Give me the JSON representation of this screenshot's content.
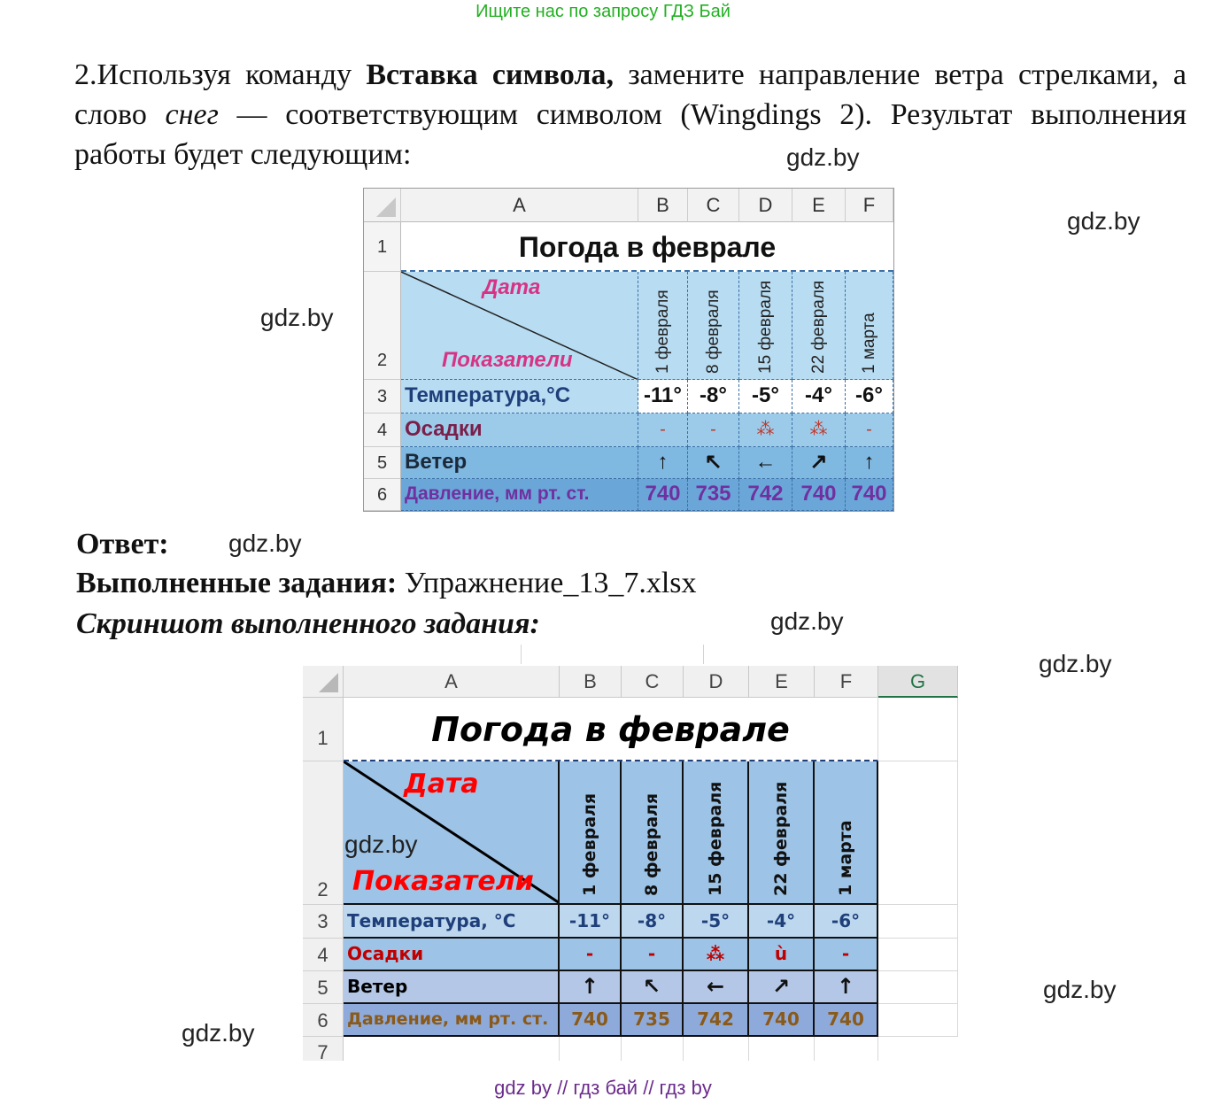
{
  "banner": "Ищите нас по запросу ГДЗ Бай",
  "task": {
    "number": "2.",
    "part1": "Используя команду ",
    "bold_cmd": "Вставка символа,",
    "part2": " замените направление ветра стрелками, а слово ",
    "italic_word": "снег",
    "part3": " — соответствующим символом (Wingdings 2). Результат выполнения работы будет следующим:"
  },
  "watermarks": [
    "gdz.by",
    "gdz.by",
    "gdz.by",
    "gdz.by",
    "gdz.by",
    "gdz.by",
    "gdz.by",
    "gdz.by",
    "gdz.by"
  ],
  "answer": {
    "answer_label": "Ответ:",
    "done_label": "Выполненные задания:",
    "done_file": " Упражнение_13_7.xlsx",
    "screenshot_label": "Скриншот выполненного задания:"
  },
  "sheet_book": {
    "columns": [
      "A",
      "B",
      "C",
      "D",
      "E",
      "F"
    ],
    "rows": [
      "1",
      "2",
      "3",
      "4",
      "5",
      "6"
    ],
    "title": "Погода в феврале",
    "diag_top": "Дата",
    "diag_bottom": "Показатели",
    "dates": [
      "1 февраля",
      "8 февраля",
      "15 февраля",
      "22 февраля",
      "1 марта"
    ],
    "labels": [
      "Температура,°С",
      "Осадки",
      "Ветер",
      "Давление, мм рт. ст."
    ],
    "temperature": [
      "-11°",
      "-8°",
      "-5°",
      "-4°",
      "-6°"
    ],
    "precip": [
      "-",
      "-",
      "⁂",
      "⁂",
      "-"
    ],
    "wind": [
      "↑",
      "↖",
      "←",
      "↗",
      "↑"
    ],
    "pressure": [
      "740",
      "735",
      "742",
      "740",
      "740"
    ]
  },
  "sheet_screen": {
    "columns": [
      "A",
      "B",
      "C",
      "D",
      "E",
      "F",
      "G"
    ],
    "rows": [
      "1",
      "2",
      "3",
      "4",
      "5",
      "6",
      "7"
    ],
    "title": "Погода в феврале",
    "diag_top": "Дата",
    "diag_bottom": "Показатели",
    "dates": [
      "1 февраля",
      "8 февраля",
      "15 февраля",
      "22 февраля",
      "1 марта"
    ],
    "labels": [
      "Температура, °С",
      "Осадки",
      "Ветер",
      "Давление, мм рт. ст."
    ],
    "temperature": [
      "-11°",
      "-8°",
      "-5°",
      "-4°",
      "-6°"
    ],
    "precip": [
      "-",
      "-",
      "⁂",
      "ù",
      "-"
    ],
    "wind": [
      "↑",
      "↖",
      "←",
      "↗",
      "↑"
    ],
    "pressure": [
      "740",
      "735",
      "742",
      "740",
      "740"
    ]
  },
  "colors": {
    "book_fill": "#b8dcf2",
    "book_fill_alt": "#9ccbea",
    "screen_fill": "#9dc3e6",
    "screen_fill_light": "#bdd7ee",
    "screen_fill_alt": "#8eaadb",
    "date_red": "#ff0000",
    "book_pink": "#d63384",
    "temp_blue": "#1f3f7a",
    "precip_red": "#c00000",
    "pressure_brown": "#8a5a1a",
    "pressure_purple": "#7030a0"
  },
  "footer": "gdz by  //  гдз бай  //  гдз by"
}
